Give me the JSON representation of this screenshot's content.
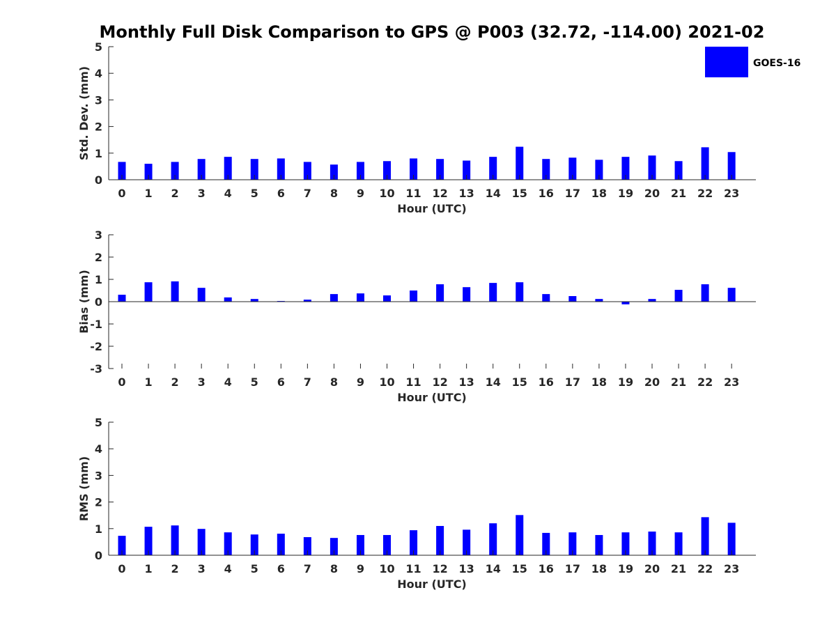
{
  "title": "Monthly Full Disk Comparison to GPS @ P003 (32.72, -114.00) 2021-02",
  "legend": {
    "label": "GOES-16",
    "color": "#0000ff"
  },
  "chart_data": [
    {
      "type": "bar",
      "xlabel": "Hour (UTC)",
      "ylabel": "Std. Dev. (mm)",
      "ylim": [
        0,
        5
      ],
      "yticks": [
        0,
        1,
        2,
        3,
        4,
        5
      ],
      "categories": [
        "0",
        "1",
        "2",
        "3",
        "4",
        "5",
        "6",
        "7",
        "8",
        "9",
        "10",
        "11",
        "12",
        "13",
        "14",
        "15",
        "16",
        "17",
        "18",
        "19",
        "20",
        "21",
        "22",
        "23"
      ],
      "series": [
        {
          "name": "GOES-16",
          "color": "#0000ff",
          "values": [
            0.67,
            0.6,
            0.67,
            0.78,
            0.86,
            0.78,
            0.8,
            0.67,
            0.57,
            0.67,
            0.7,
            0.8,
            0.78,
            0.72,
            0.86,
            1.24,
            0.78,
            0.83,
            0.75,
            0.86,
            0.91,
            0.7,
            1.22,
            1.04
          ]
        }
      ]
    },
    {
      "type": "bar",
      "xlabel": "Hour (UTC)",
      "ylabel": "Bias (mm)",
      "ylim": [
        -3,
        3
      ],
      "yticks": [
        -3,
        -2,
        -1,
        0,
        1,
        2,
        3
      ],
      "categories": [
        "0",
        "1",
        "2",
        "3",
        "4",
        "5",
        "6",
        "7",
        "8",
        "9",
        "10",
        "11",
        "12",
        "13",
        "14",
        "15",
        "16",
        "17",
        "18",
        "19",
        "20",
        "21",
        "22",
        "23"
      ],
      "series": [
        {
          "name": "GOES-16",
          "color": "#0000ff",
          "values": [
            0.31,
            0.87,
            0.91,
            0.62,
            0.19,
            0.12,
            0.03,
            0.09,
            0.34,
            0.37,
            0.28,
            0.5,
            0.78,
            0.65,
            0.84,
            0.87,
            0.34,
            0.25,
            0.12,
            -0.12,
            0.12,
            0.53,
            0.78,
            0.62
          ]
        }
      ]
    },
    {
      "type": "bar",
      "xlabel": "Hour (UTC)",
      "ylabel": "RMS (mm)",
      "ylim": [
        0,
        5
      ],
      "yticks": [
        0,
        1,
        2,
        3,
        4,
        5
      ],
      "categories": [
        "0",
        "1",
        "2",
        "3",
        "4",
        "5",
        "6",
        "7",
        "8",
        "9",
        "10",
        "11",
        "12",
        "13",
        "14",
        "15",
        "16",
        "17",
        "18",
        "19",
        "20",
        "21",
        "22",
        "23"
      ],
      "series": [
        {
          "name": "GOES-16",
          "color": "#0000ff",
          "values": [
            0.73,
            1.07,
            1.12,
            0.99,
            0.86,
            0.78,
            0.81,
            0.68,
            0.65,
            0.76,
            0.76,
            0.94,
            1.1,
            0.96,
            1.2,
            1.51,
            0.84,
            0.86,
            0.76,
            0.86,
            0.89,
            0.86,
            1.43,
            1.22
          ]
        }
      ]
    }
  ]
}
